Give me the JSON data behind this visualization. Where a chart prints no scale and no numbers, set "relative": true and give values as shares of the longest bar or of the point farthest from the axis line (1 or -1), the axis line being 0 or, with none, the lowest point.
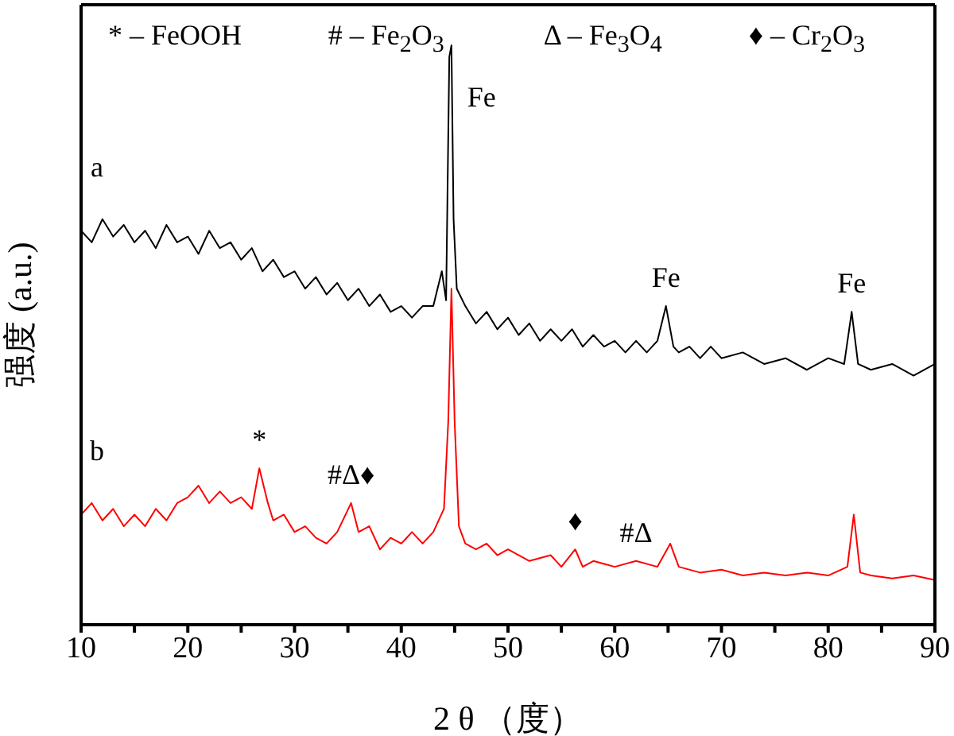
{
  "chart_data": {
    "type": "line",
    "relative": true,
    "xlabel": "2 θ （度）",
    "ylabel": "强度 (a.u.)",
    "xlim": [
      10,
      90
    ],
    "xticks": [
      10,
      {
        "value": 15,
        "label": null
      },
      20,
      {
        "value": 25,
        "label": null
      },
      30,
      {
        "value": 35,
        "label": null
      },
      40,
      {
        "value": 45,
        "label": null
      },
      50,
      {
        "value": 55,
        "label": null
      },
      60,
      {
        "value": 65,
        "label": null
      },
      70,
      {
        "value": 75,
        "label": null
      },
      80,
      {
        "value": 85,
        "label": null
      },
      90
    ],
    "legend": false,
    "grid": false,
    "marker": "none",
    "line_style": "solid",
    "series": [
      {
        "name": "a",
        "color": "#000000",
        "x": [
          10,
          11,
          12,
          13,
          14,
          15,
          16,
          17,
          18,
          19,
          20,
          21,
          22,
          23,
          24,
          25,
          26,
          27,
          28,
          29,
          30,
          31,
          32,
          33,
          34,
          35,
          36,
          37,
          38,
          39,
          40,
          41,
          42,
          43,
          43.8,
          44.2,
          44.5,
          44.7,
          44.9,
          45.2,
          46,
          47,
          48,
          49,
          50,
          51,
          52,
          53,
          54,
          55,
          56,
          57,
          58,
          59,
          60,
          61,
          62,
          63,
          64,
          64.8,
          65.5,
          66,
          67,
          68,
          69,
          70,
          72,
          74,
          76,
          78,
          80,
          81.5,
          82.2,
          82.8,
          84,
          86,
          88,
          90
        ],
        "values": [
          0.68,
          0.66,
          0.7,
          0.67,
          0.69,
          0.66,
          0.68,
          0.65,
          0.69,
          0.66,
          0.67,
          0.64,
          0.68,
          0.65,
          0.66,
          0.63,
          0.65,
          0.61,
          0.63,
          0.6,
          0.61,
          0.58,
          0.6,
          0.57,
          0.59,
          0.56,
          0.58,
          0.55,
          0.57,
          0.54,
          0.55,
          0.53,
          0.55,
          0.55,
          0.61,
          0.56,
          0.98,
          1,
          0.7,
          0.58,
          0.55,
          0.52,
          0.54,
          0.51,
          0.53,
          0.5,
          0.52,
          0.49,
          0.51,
          0.49,
          0.51,
          0.48,
          0.5,
          0.48,
          0.49,
          0.47,
          0.49,
          0.47,
          0.49,
          0.55,
          0.48,
          0.47,
          0.48,
          0.46,
          0.48,
          0.46,
          0.47,
          0.45,
          0.46,
          0.44,
          0.46,
          0.45,
          0.54,
          0.45,
          0.44,
          0.45,
          0.43,
          0.45
        ]
      },
      {
        "name": "b",
        "color": "#ff0000",
        "x": [
          10,
          11,
          12,
          13,
          14,
          15,
          16,
          17,
          18,
          19,
          20,
          21,
          22,
          23,
          24,
          25,
          26,
          26.7,
          27.5,
          28,
          29,
          30,
          31,
          32,
          33,
          34,
          35.3,
          36,
          37,
          38,
          39,
          40,
          41,
          42,
          43,
          44,
          44.4,
          44.7,
          45,
          45.4,
          46,
          47,
          48,
          49,
          50,
          52,
          54,
          55,
          56.3,
          57,
          58,
          60,
          62,
          64,
          65.2,
          66,
          68,
          70,
          72,
          74,
          76,
          78,
          80,
          81.8,
          82.4,
          83,
          84,
          86,
          88,
          90
        ],
        "values": [
          0.19,
          0.21,
          0.18,
          0.2,
          0.17,
          0.19,
          0.17,
          0.2,
          0.18,
          0.21,
          0.22,
          0.24,
          0.21,
          0.23,
          0.21,
          0.22,
          0.2,
          0.27,
          0.21,
          0.18,
          0.19,
          0.16,
          0.17,
          0.15,
          0.14,
          0.16,
          0.21,
          0.16,
          0.17,
          0.13,
          0.15,
          0.14,
          0.16,
          0.14,
          0.16,
          0.2,
          0.35,
          0.58,
          0.35,
          0.17,
          0.14,
          0.13,
          0.14,
          0.12,
          0.13,
          0.11,
          0.12,
          0.1,
          0.13,
          0.1,
          0.11,
          0.1,
          0.11,
          0.1,
          0.14,
          0.1,
          0.09,
          0.095,
          0.085,
          0.09,
          0.085,
          0.09,
          0.085,
          0.1,
          0.19,
          0.09,
          0.085,
          0.08,
          0.085,
          0.077
        ]
      }
    ],
    "annotations": [
      "* – FeOOH",
      "# – Fe$_{2}$O$_{3}$",
      "Δ – Fe$_{3}$O$_{4}$",
      "♦ – Cr$_{2}$O$_{3}$",
      {
        "text": "Fe",
        "x": 44.7,
        "y": 1
      },
      {
        "text": "Fe",
        "x": 64.8,
        "y": 0.55
      },
      {
        "text": "Fe",
        "x": 82.2,
        "y": 0.54
      },
      {
        "text": "*",
        "x": 26.7,
        "y": 0.27
      },
      {
        "text": "#Δ♦",
        "x": 35.3,
        "y": 0.21
      },
      {
        "text": "♦",
        "x": 56.3,
        "y": 0.13
      },
      {
        "text": "#Δ",
        "x": 62,
        "y": 0.11
      }
    ]
  }
}
